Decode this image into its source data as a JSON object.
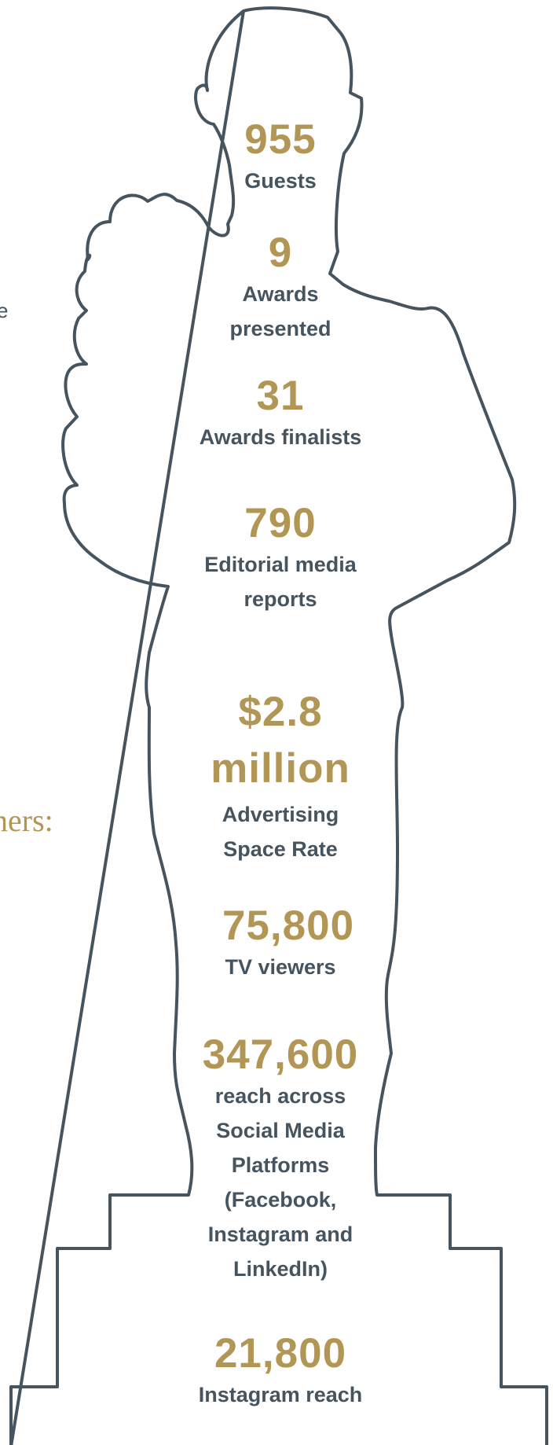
{
  "edge_texts": {
    "fragment_small": "e",
    "fragment_gold": "ners:"
  },
  "stats": [
    {
      "value": "955",
      "label": "Guests"
    },
    {
      "value": "9",
      "label": "Awards presented"
    },
    {
      "value": "31",
      "label": "Awards finalists"
    },
    {
      "value": "790",
      "label": "Editorial media reports"
    },
    {
      "value": "$2.8 million",
      "label": "Advertising Space Rate"
    },
    {
      "value": "75,800",
      "label": "TV viewers"
    },
    {
      "value": "347,600",
      "label": "reach across Social Media Platforms (Facebook, Instagram and LinkedIn)"
    },
    {
      "value": "21,800",
      "label": "Instagram reach"
    }
  ],
  "colors": {
    "accent_gold": "#b29655",
    "text_slate": "#46545f",
    "outline": "#46545f"
  }
}
